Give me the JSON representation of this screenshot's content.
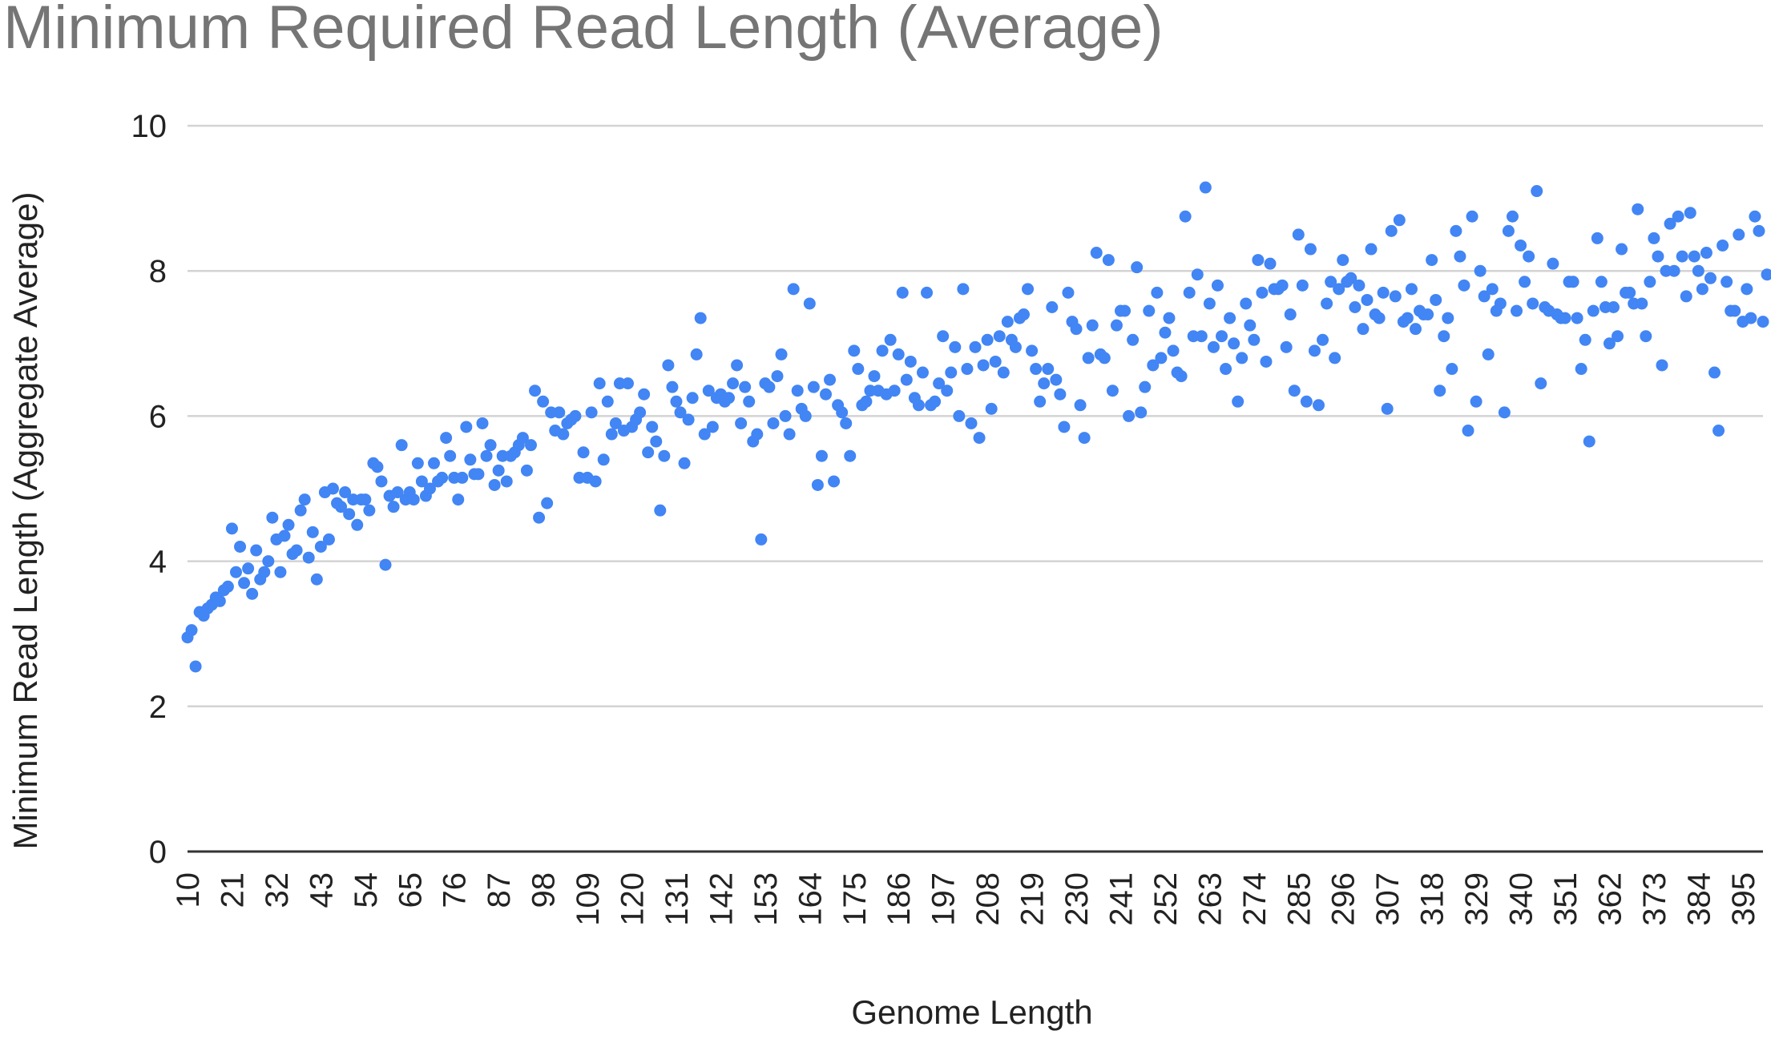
{
  "chart_data": {
    "type": "scatter",
    "title": "Minimum Required Read Length (Average)",
    "xlabel": "Genome Length",
    "ylabel": "Minimum Read Length (Aggregate Average)",
    "xlim": [
      10,
      400
    ],
    "ylim": [
      0,
      10
    ],
    "yticks": [
      0,
      2,
      4,
      6,
      8,
      10
    ],
    "xtick_labels": [
      10,
      21,
      32,
      43,
      54,
      65,
      76,
      87,
      98,
      109,
      120,
      131,
      142,
      153,
      164,
      175,
      186,
      197,
      208,
      219,
      230,
      241,
      252,
      263,
      274,
      285,
      296,
      307,
      318,
      329,
      340,
      351,
      362,
      373,
      384,
      395
    ],
    "grid": true,
    "legend": "none",
    "point_color": "#4285f4",
    "x_start": 10,
    "x_step": 1,
    "series": [
      {
        "values": [
          2.95,
          3.05,
          2.55,
          3.3,
          3.25,
          3.35,
          3.4,
          3.5,
          3.45,
          3.6,
          3.65,
          4.45,
          3.85,
          4.2,
          3.7,
          3.9,
          3.55,
          4.15,
          3.75,
          3.85,
          4.0,
          4.6,
          4.3,
          3.85,
          4.35,
          4.5,
          4.1,
          4.15,
          4.7,
          4.85,
          4.05,
          4.4,
          3.75,
          4.2,
          4.95,
          4.3,
          5.0,
          4.8,
          4.75,
          4.95,
          4.65,
          4.85,
          4.5,
          4.85,
          4.85,
          4.7,
          5.35,
          5.3,
          5.1,
          3.95,
          4.9,
          4.75,
          4.95,
          5.6,
          4.85,
          4.95,
          4.85,
          5.35,
          5.1,
          4.9,
          5.0,
          5.35,
          5.1,
          5.15,
          5.7,
          5.45,
          5.15,
          4.85,
          5.15,
          5.85,
          5.4,
          5.2,
          5.2,
          5.9,
          5.45,
          5.6,
          5.05,
          5.25,
          5.45,
          5.1,
          5.45,
          5.5,
          5.6,
          5.7,
          5.25,
          5.6,
          6.35,
          4.6,
          6.2,
          4.8,
          6.05,
          5.8,
          6.05,
          5.75,
          5.9,
          5.95,
          6.0,
          5.15,
          5.5,
          5.15,
          6.05,
          5.1,
          6.45,
          5.4,
          6.2,
          5.75,
          5.9,
          6.45,
          5.8,
          6.45,
          5.85,
          5.95,
          6.05,
          6.3,
          5.5,
          5.85,
          5.65,
          4.7,
          5.45,
          6.7,
          6.4,
          6.2,
          6.05,
          5.35,
          5.95,
          6.25,
          6.85,
          7.35,
          5.75,
          6.35,
          5.85,
          6.25,
          6.3,
          6.2,
          6.25,
          6.45,
          6.7,
          5.9,
          6.4,
          6.2,
          5.65,
          5.75,
          4.3,
          6.45,
          6.4,
          5.9,
          6.55,
          6.85,
          6.0,
          5.75,
          7.75,
          6.35,
          6.1,
          6.0,
          7.55,
          6.4,
          5.05,
          5.45,
          6.3,
          6.5,
          5.1,
          6.15,
          6.05,
          5.9,
          5.45,
          6.9,
          6.65,
          6.15,
          6.2,
          6.35,
          6.55,
          6.35,
          6.9,
          6.3,
          7.05,
          6.35,
          6.85,
          7.7,
          6.5,
          6.75,
          6.25,
          6.15,
          6.6,
          7.7,
          6.15,
          6.2,
          6.45,
          7.1,
          6.35,
          6.6,
          6.95,
          6.0,
          7.75,
          6.65,
          5.9,
          6.95,
          5.7,
          6.7,
          7.05,
          6.1,
          6.75,
          7.1,
          6.6,
          7.3,
          7.05,
          6.95,
          7.35,
          7.4,
          7.75,
          6.9,
          6.65,
          6.2,
          6.45,
          6.65,
          7.5,
          6.5,
          6.3,
          5.85,
          7.7,
          7.3,
          7.2,
          6.15,
          5.7,
          6.8,
          7.25,
          8.25,
          6.85,
          6.8,
          8.15,
          6.35,
          7.25,
          7.45,
          7.45,
          6.0,
          7.05,
          8.05,
          6.05,
          6.4,
          7.45,
          6.7,
          7.7,
          6.8,
          7.15,
          7.35,
          6.9,
          6.6,
          6.55,
          8.75,
          7.7,
          7.1,
          7.95,
          7.1,
          9.15,
          7.55,
          6.95,
          7.8,
          7.1,
          6.65,
          7.35,
          7.0,
          6.2,
          6.8,
          7.55,
          7.25,
          7.05,
          8.15,
          7.7,
          6.75,
          8.1,
          7.75,
          7.75,
          7.8,
          6.95,
          7.4,
          6.35,
          8.5,
          7.8,
          6.2,
          8.3,
          6.9,
          6.15,
          7.05,
          7.55,
          7.85,
          6.8,
          7.75,
          8.15,
          7.85,
          7.9,
          7.5,
          7.8,
          7.2,
          7.6,
          8.3,
          7.4,
          7.35,
          7.7,
          6.1,
          8.55,
          7.65,
          8.7,
          7.3,
          7.35,
          7.75,
          7.2,
          7.45,
          7.4,
          7.4,
          8.15,
          7.6,
          6.35,
          7.1,
          7.35,
          6.65,
          8.55,
          8.2,
          7.8,
          5.8,
          8.75,
          6.2,
          8.0,
          7.65,
          6.85,
          7.75,
          7.45,
          7.55,
          6.05,
          8.55,
          8.75,
          7.45,
          8.35,
          7.85,
          8.2,
          7.55,
          9.1,
          6.45,
          7.5,
          7.45,
          8.1,
          7.4,
          7.35,
          7.35,
          7.85,
          7.85,
          7.35,
          6.65,
          7.05,
          5.65,
          7.45,
          8.45,
          7.85,
          7.5,
          7.0,
          7.5,
          7.1,
          8.3,
          7.7,
          7.7,
          7.55,
          8.85,
          7.55,
          7.1,
          7.85,
          8.45,
          8.2,
          6.7,
          8.0,
          8.65,
          8.0,
          8.75,
          8.2,
          7.65,
          8.8,
          8.2,
          8.0,
          7.75,
          8.25,
          7.9,
          6.6,
          5.8,
          8.35,
          7.85,
          7.45,
          7.45,
          8.5,
          7.3,
          7.75,
          7.35,
          8.75,
          8.55,
          7.3,
          7.95
        ]
      }
    ]
  }
}
